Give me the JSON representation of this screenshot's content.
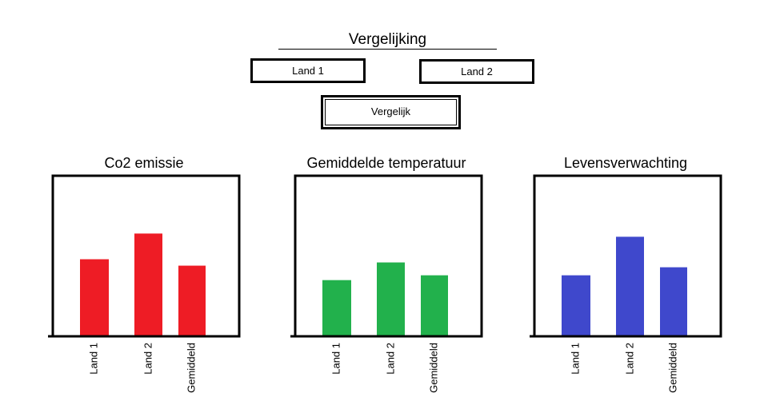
{
  "header": {
    "title": "Vergelijking",
    "land1_value": "Land 1",
    "land2_value": "Land 2",
    "compare_label": "Vergelijk"
  },
  "chart_data": [
    {
      "type": "bar",
      "title": "Co2 emissie",
      "categories": [
        "Land 1",
        "Land 2",
        "Gemiddeld"
      ],
      "values": [
        48,
        64,
        44
      ],
      "ylim": [
        0,
        100
      ],
      "color": "#ee1c25",
      "xlabel": "",
      "ylabel": "",
      "grid": false
    },
    {
      "type": "bar",
      "title": "Gemiddelde temperatuur",
      "categories": [
        "Land 1",
        "Land 2",
        "Gemiddeld"
      ],
      "values": [
        35,
        46,
        38
      ],
      "ylim": [
        0,
        100
      ],
      "color": "#22b14c",
      "xlabel": "",
      "ylabel": "",
      "grid": false
    },
    {
      "type": "bar",
      "title": "Levensverwachting",
      "categories": [
        "Land 1",
        "Land 2",
        "Gemiddeld"
      ],
      "values": [
        38,
        62,
        43
      ],
      "ylim": [
        0,
        100
      ],
      "color": "#3f48cc",
      "xlabel": "",
      "ylabel": "",
      "grid": false
    }
  ]
}
